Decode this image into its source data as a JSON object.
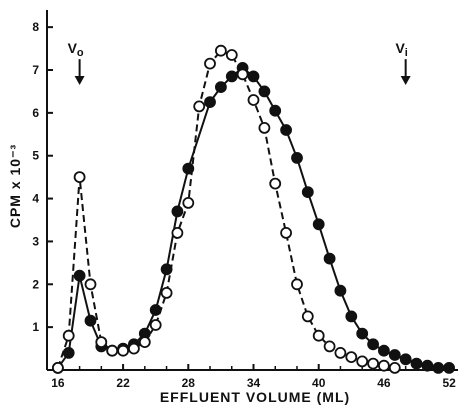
{
  "chart_data": {
    "type": "line",
    "title": "",
    "xlabel": "EFFLUENT VOLUME (ML)",
    "ylabel": "CPM x 10⁻³",
    "xlim": [
      15,
      53
    ],
    "ylim": [
      0,
      8.4
    ],
    "xticks": [
      16,
      22,
      28,
      34,
      40,
      46,
      52
    ],
    "yticks": [
      1,
      2,
      3,
      4,
      5,
      6,
      7,
      8
    ],
    "grid": false,
    "legend": "none",
    "annotations": [
      {
        "label": "V",
        "sub": "o",
        "x": 18,
        "arrow_from": 7.3,
        "arrow_to": 6.65
      },
      {
        "label": "V",
        "sub": "i",
        "x": 48,
        "arrow_from": 7.3,
        "arrow_to": 6.65
      }
    ],
    "series": [
      {
        "marker": "filled-circle",
        "line": "solid",
        "color": "#111111",
        "points": [
          [
            16,
            0.05
          ],
          [
            17,
            0.4
          ],
          [
            18,
            2.2
          ],
          [
            19,
            1.15
          ],
          [
            20,
            0.55
          ],
          [
            21,
            0.45
          ],
          [
            22,
            0.5
          ],
          [
            23,
            0.6
          ],
          [
            24,
            0.85
          ],
          [
            25,
            1.4
          ],
          [
            26,
            2.35
          ],
          [
            27,
            3.7
          ],
          [
            28,
            4.7
          ],
          [
            30,
            6.25
          ],
          [
            31,
            6.6
          ],
          [
            32,
            6.85
          ],
          [
            33,
            7.05
          ],
          [
            34,
            6.85
          ],
          [
            35,
            6.5
          ],
          [
            36,
            6.05
          ],
          [
            37,
            5.6
          ],
          [
            38,
            4.95
          ],
          [
            39,
            4.15
          ],
          [
            40,
            3.4
          ],
          [
            41,
            2.6
          ],
          [
            42,
            1.85
          ],
          [
            43,
            1.25
          ],
          [
            44,
            0.85
          ],
          [
            45,
            0.6
          ],
          [
            46,
            0.45
          ],
          [
            47,
            0.35
          ],
          [
            48,
            0.25
          ],
          [
            49,
            0.15
          ],
          [
            50,
            0.1
          ],
          [
            51,
            0.05
          ],
          [
            52,
            0.05
          ]
        ]
      },
      {
        "marker": "open-circle",
        "line": "dashed",
        "color": "#111111",
        "points": [
          [
            16,
            0.05
          ],
          [
            17,
            0.8
          ],
          [
            18,
            4.5
          ],
          [
            19,
            2.0
          ],
          [
            20,
            0.65
          ],
          [
            21,
            0.45
          ],
          [
            22,
            0.45
          ],
          [
            23,
            0.5
          ],
          [
            24,
            0.65
          ],
          [
            25,
            1.05
          ],
          [
            26,
            1.8
          ],
          [
            27,
            3.2
          ],
          [
            28,
            3.9
          ],
          [
            29,
            6.15
          ],
          [
            30,
            7.15
          ],
          [
            31,
            7.45
          ],
          [
            32,
            7.35
          ],
          [
            33,
            6.9
          ],
          [
            34,
            6.3
          ],
          [
            35,
            5.65
          ],
          [
            36,
            4.35
          ],
          [
            37,
            3.2
          ],
          [
            38,
            2.0
          ],
          [
            39,
            1.25
          ],
          [
            40,
            0.8
          ],
          [
            41,
            0.55
          ],
          [
            42,
            0.4
          ],
          [
            43,
            0.3
          ],
          [
            44,
            0.2
          ],
          [
            45,
            0.15
          ],
          [
            46,
            0.1
          ],
          [
            47,
            0.05
          ]
        ]
      }
    ]
  }
}
